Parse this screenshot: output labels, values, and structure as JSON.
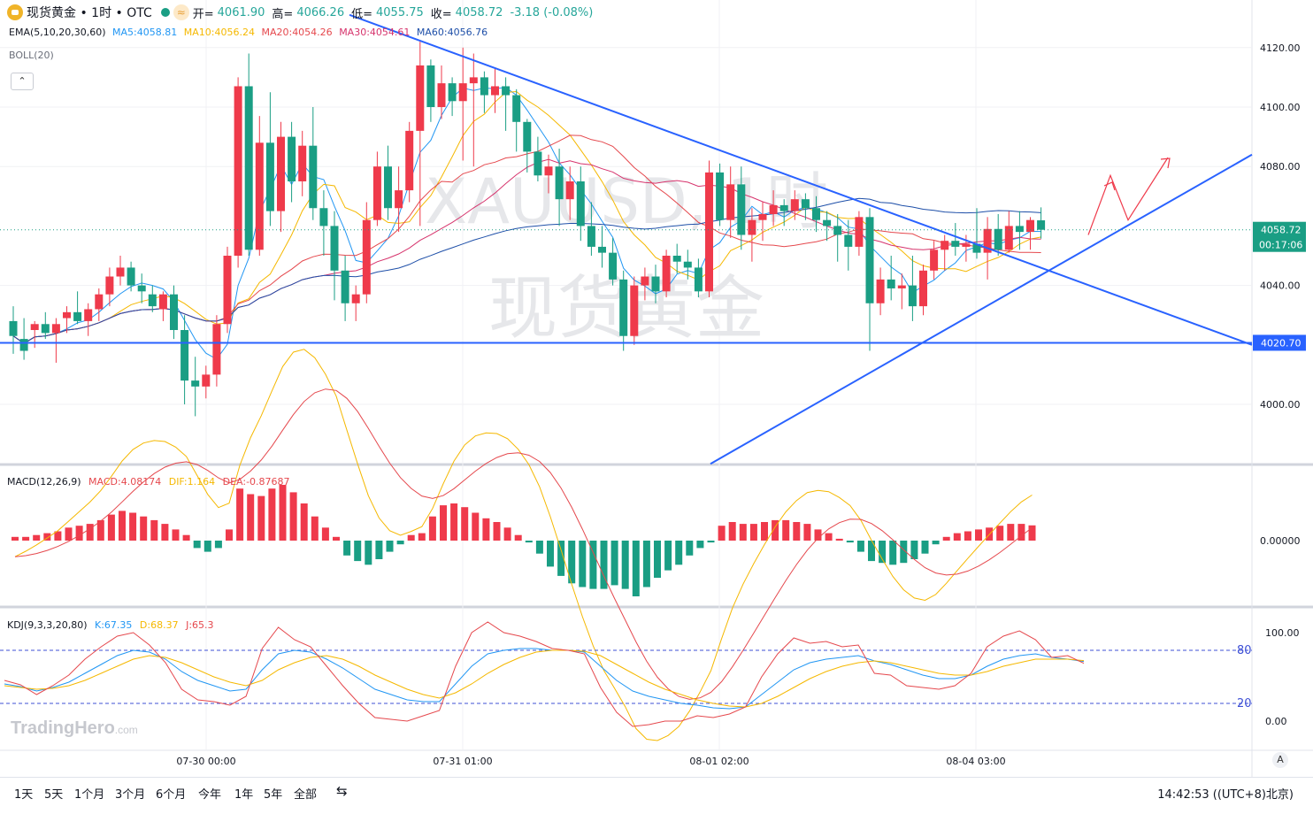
{
  "header": {
    "symbol": "现货黄金 • 1时 • OTC",
    "wave_icon": "≈",
    "open_label": "开=",
    "open": "4061.90",
    "high_label": "高=",
    "high": "4066.26",
    "low_label": "低=",
    "low": "4055.75",
    "close_label": "收=",
    "close": "4058.72",
    "change": "-3.18 (-0.08%)"
  },
  "indicators": {
    "ema": "EMA(5,10,20,30,60)",
    "ma5": "MA5:4058.81",
    "ma10": "MA10:4056.24",
    "ma20": "MA20:4054.26",
    "ma30": "MA30:4054.61",
    "ma60": "MA60:4056.76",
    "boll": "BOLL(20)",
    "collapse": "⌃"
  },
  "macd_legend": {
    "name": "MACD(12,26,9)",
    "macd": "MACD:4.08174",
    "dif": "DIF:1.164",
    "dea": "DEA:-0.87687"
  },
  "kdj_legend": {
    "name": "KDJ(9,3,3,20,80)",
    "k": "K:67.35",
    "d": "D:68.37",
    "j": "J:65.3"
  },
  "watermark": {
    "main": "XAUUSD, 1时",
    "sub": "现货黄金",
    "brand": "TradingHero",
    "brand_suffix": ".com"
  },
  "timeframes": [
    "1天",
    "5天",
    "1个月",
    "3个月",
    "6个月",
    "今年",
    "1年",
    "5年",
    "全部"
  ],
  "clock": "14:42:53 ((UTC+8)北京)",
  "auto_label": "A",
  "colors": {
    "up": "#ef3a4b",
    "down": "#1a9e84",
    "trendline": "#2962ff",
    "support": "#2962ff"
  },
  "chart_data": [
    {
      "type": "candlestick",
      "title": "现货黄金 • 1时 • OTC",
      "x_ticks": [
        "07-30 00:00",
        "07-31 01:00",
        "08-01 02:00",
        "08-04 03:00"
      ],
      "y_ticks": [
        4000.0,
        4020.7,
        4040.0,
        4058.72,
        4080.0,
        4100.0,
        4120.0
      ],
      "ylim": [
        3980,
        4130
      ],
      "last_price": "4058.72",
      "countdown": "00:17:06",
      "support_level": "4020.70",
      "grid": true,
      "candles": [
        [
          4028,
          4033,
          4017,
          4023
        ],
        [
          4022,
          4029,
          4015,
          4018
        ],
        [
          4025,
          4028,
          4019,
          4027
        ],
        [
          4027,
          4031,
          4022,
          4024
        ],
        [
          4024,
          4029,
          4014,
          4027
        ],
        [
          4029,
          4033,
          4024,
          4031
        ],
        [
          4031,
          4038,
          4027,
          4028
        ],
        [
          4028,
          4034,
          4023,
          4032
        ],
        [
          4032,
          4039,
          4028,
          4037
        ],
        [
          4037,
          4046,
          4033,
          4043
        ],
        [
          4043,
          4050,
          4040,
          4046
        ],
        [
          4046,
          4048,
          4038,
          4040
        ],
        [
          4040,
          4044,
          4034,
          4038
        ],
        [
          4037,
          4040,
          4031,
          4033
        ],
        [
          4032,
          4038,
          4028,
          4037
        ],
        [
          4037,
          4040,
          4022,
          4025
        ],
        [
          4025,
          4030,
          4000,
          4008
        ],
        [
          4008,
          4016,
          3996,
          4006
        ],
        [
          4006,
          4013,
          4002,
          4010
        ],
        [
          4010,
          4030,
          4006,
          4027
        ],
        [
          4027,
          4053,
          4024,
          4050
        ],
        [
          4050,
          4110,
          4046,
          4107
        ],
        [
          4107,
          4118,
          4050,
          4052
        ],
        [
          4052,
          4097,
          4050,
          4088
        ],
        [
          4088,
          4105,
          4060,
          4065
        ],
        [
          4065,
          4095,
          4058,
          4090
        ],
        [
          4090,
          4095,
          4068,
          4075
        ],
        [
          4075,
          4092,
          4070,
          4087
        ],
        [
          4087,
          4100,
          4062,
          4066
        ],
        [
          4066,
          4072,
          4050,
          4060
        ],
        [
          4060,
          4065,
          4035,
          4045
        ],
        [
          4045,
          4050,
          4028,
          4034
        ],
        [
          4034,
          4040,
          4028,
          4037
        ],
        [
          4037,
          4068,
          4034,
          4062
        ],
        [
          4062,
          4085,
          4060,
          4080
        ],
        [
          4080,
          4087,
          4062,
          4066
        ],
        [
          4066,
          4080,
          4058,
          4072
        ],
        [
          4072,
          4095,
          4068,
          4092
        ],
        [
          4092,
          4122,
          4060,
          4114
        ],
        [
          4114,
          4116,
          4095,
          4100
        ],
        [
          4100,
          4114,
          4096,
          4108
        ],
        [
          4108,
          4110,
          4097,
          4102
        ],
        [
          4102,
          4120,
          4082,
          4108
        ],
        [
          4108,
          4118,
          4080,
          4110
        ],
        [
          4110,
          4112,
          4098,
          4104
        ],
        [
          4104,
          4113,
          4098,
          4107
        ],
        [
          4107,
          4110,
          4092,
          4104
        ],
        [
          4104,
          4106,
          4085,
          4095
        ],
        [
          4095,
          4096,
          4078,
          4085
        ],
        [
          4085,
          4090,
          4075,
          4077
        ],
        [
          4077,
          4084,
          4071,
          4080
        ],
        [
          4080,
          4086,
          4060,
          4069
        ],
        [
          4069,
          4080,
          4062,
          4075
        ],
        [
          4075,
          4080,
          4055,
          4060
        ],
        [
          4060,
          4068,
          4050,
          4053
        ],
        [
          4053,
          4060,
          4046,
          4051
        ],
        [
          4051,
          4056,
          4040,
          4042
        ],
        [
          4042,
          4045,
          4018,
          4023
        ],
        [
          4023,
          4043,
          4020,
          4040
        ],
        [
          4040,
          4046,
          4035,
          4043
        ],
        [
          4043,
          4047,
          4034,
          4038
        ],
        [
          4038,
          4052,
          4036,
          4050
        ],
        [
          4050,
          4054,
          4044,
          4048
        ],
        [
          4048,
          4052,
          4042,
          4046
        ],
        [
          4046,
          4049,
          4036,
          4038
        ],
        [
          4038,
          4082,
          4036,
          4078
        ],
        [
          4078,
          4081,
          4060,
          4062
        ],
        [
          4062,
          4080,
          4056,
          4074
        ],
        [
          4074,
          4080,
          4052,
          4057
        ],
        [
          4057,
          4066,
          4048,
          4062
        ],
        [
          4062,
          4068,
          4055,
          4064
        ],
        [
          4064,
          4072,
          4060,
          4067
        ],
        [
          4067,
          4069,
          4060,
          4065
        ],
        [
          4065,
          4072,
          4062,
          4069
        ],
        [
          4069,
          4071,
          4062,
          4066
        ],
        [
          4066,
          4070,
          4058,
          4062
        ],
        [
          4062,
          4065,
          4055,
          4060
        ],
        [
          4060,
          4064,
          4048,
          4057
        ],
        [
          4057,
          4062,
          4045,
          4053
        ],
        [
          4053,
          4065,
          4050,
          4063
        ],
        [
          4063,
          4066,
          4018,
          4034
        ],
        [
          4034,
          4046,
          4030,
          4042
        ],
        [
          4042,
          4050,
          4035,
          4039
        ],
        [
          4039,
          4044,
          4032,
          4040
        ],
        [
          4040,
          4050,
          4028,
          4033
        ],
        [
          4033,
          4047,
          4030,
          4045
        ],
        [
          4045,
          4055,
          4042,
          4052
        ],
        [
          4052,
          4057,
          4045,
          4055
        ],
        [
          4055,
          4061,
          4050,
          4053
        ],
        [
          4053,
          4057,
          4048,
          4054
        ],
        [
          4054,
          4066,
          4049,
          4051
        ],
        [
          4051,
          4063,
          4042,
          4059
        ],
        [
          4059,
          4064,
          4050,
          4052
        ],
        [
          4052,
          4065,
          4051,
          4060
        ],
        [
          4060,
          4065,
          4052,
          4058
        ],
        [
          4058,
          4063,
          4052,
          4062
        ],
        [
          4061.9,
          4066.26,
          4055.75,
          4058.72
        ]
      ],
      "trendlines": [
        {
          "name": "descending",
          "from": [
            "07-30 11:00",
            4131
          ],
          "to": [
            "08-05 14:00",
            4020
          ]
        },
        {
          "name": "ascending",
          "from": [
            "08-01 00:00",
            3990
          ],
          "to": [
            "08-05 14:00",
            4085
          ]
        }
      ],
      "forecast_path": [
        4057,
        4077,
        4062,
        4083
      ]
    },
    {
      "type": "bar",
      "title": "MACD(12,26,9)",
      "y_ticks": [
        0.0
      ],
      "histogram": [
        1,
        1,
        1.5,
        2,
        2.5,
        3.5,
        4,
        4.5,
        5.5,
        7,
        8,
        7.5,
        6.5,
        5.5,
        4.5,
        3,
        1.5,
        -2,
        -3,
        -2,
        3,
        14,
        12.5,
        12,
        14,
        15,
        13,
        10,
        6.5,
        3.5,
        1,
        -4,
        -5.5,
        -6.5,
        -5,
        -3,
        -1,
        1.5,
        2,
        6.5,
        9.5,
        10,
        9,
        7.5,
        6,
        5,
        3.5,
        1.5,
        -0.5,
        -3.5,
        -7,
        -9.5,
        -11.5,
        -12.5,
        -13,
        -13,
        -12,
        -13,
        -15,
        -12.5,
        -10,
        -8,
        -6.5,
        -4,
        -2,
        -0.5,
        4,
        5,
        4.5,
        4.5,
        5,
        5.5,
        5.5,
        5,
        4.5,
        3,
        2,
        0.5,
        -0.5,
        -3,
        -5.5,
        -6,
        -6.5,
        -6,
        -5,
        -3.5,
        -1,
        1,
        2,
        2.5,
        3,
        3.5,
        4,
        4.5,
        4.5,
        4.1
      ]
    },
    {
      "type": "line",
      "title": "KDJ(9,3,3,20,80)",
      "y_ticks": [
        0.0,
        20,
        80,
        100.0
      ],
      "ylim": [
        0,
        100
      ],
      "reference_lines": [
        20,
        80
      ],
      "series": [
        {
          "name": "K",
          "values": [
            42,
            39,
            34,
            38,
            44,
            54,
            64,
            74,
            80,
            78,
            70,
            56,
            46,
            40,
            34,
            36,
            58,
            76,
            80,
            78,
            70,
            60,
            48,
            36,
            30,
            24,
            22,
            22,
            42,
            62,
            76,
            80,
            82,
            82,
            80,
            80,
            78,
            62,
            46,
            34,
            28,
            24,
            20,
            18,
            15,
            14,
            16,
            30,
            44,
            58,
            66,
            70,
            72,
            74,
            68,
            64,
            58,
            52,
            48,
            48,
            52,
            62,
            70,
            74,
            76,
            72,
            70,
            67.35
          ]
        },
        {
          "name": "D",
          "values": [
            40,
            38,
            36,
            37,
            40,
            46,
            54,
            62,
            70,
            74,
            72,
            66,
            58,
            50,
            44,
            40,
            46,
            58,
            66,
            72,
            74,
            70,
            62,
            52,
            44,
            36,
            30,
            26,
            32,
            42,
            54,
            64,
            72,
            78,
            80,
            80,
            79,
            74,
            64,
            54,
            44,
            36,
            30,
            24,
            20,
            17,
            16,
            20,
            28,
            38,
            48,
            56,
            62,
            66,
            68,
            66,
            62,
            58,
            54,
            52,
            52,
            56,
            62,
            66,
            70,
            70,
            70,
            68.37
          ]
        },
        {
          "name": "J",
          "values": [
            46,
            41,
            30,
            40,
            52,
            70,
            84,
            96,
            100,
            86,
            66,
            36,
            24,
            22,
            18,
            28,
            82,
            106,
            92,
            84,
            62,
            40,
            20,
            4,
            2,
            0,
            6,
            12,
            62,
            100,
            112,
            100,
            96,
            90,
            82,
            80,
            76,
            38,
            10,
            -6,
            -4,
            0,
            0,
            6,
            4,
            8,
            16,
            50,
            76,
            94,
            88,
            90,
            84,
            86,
            54,
            52,
            40,
            38,
            36,
            40,
            54,
            84,
            96,
            102,
            92,
            72,
            74,
            65.3
          ]
        }
      ]
    }
  ]
}
